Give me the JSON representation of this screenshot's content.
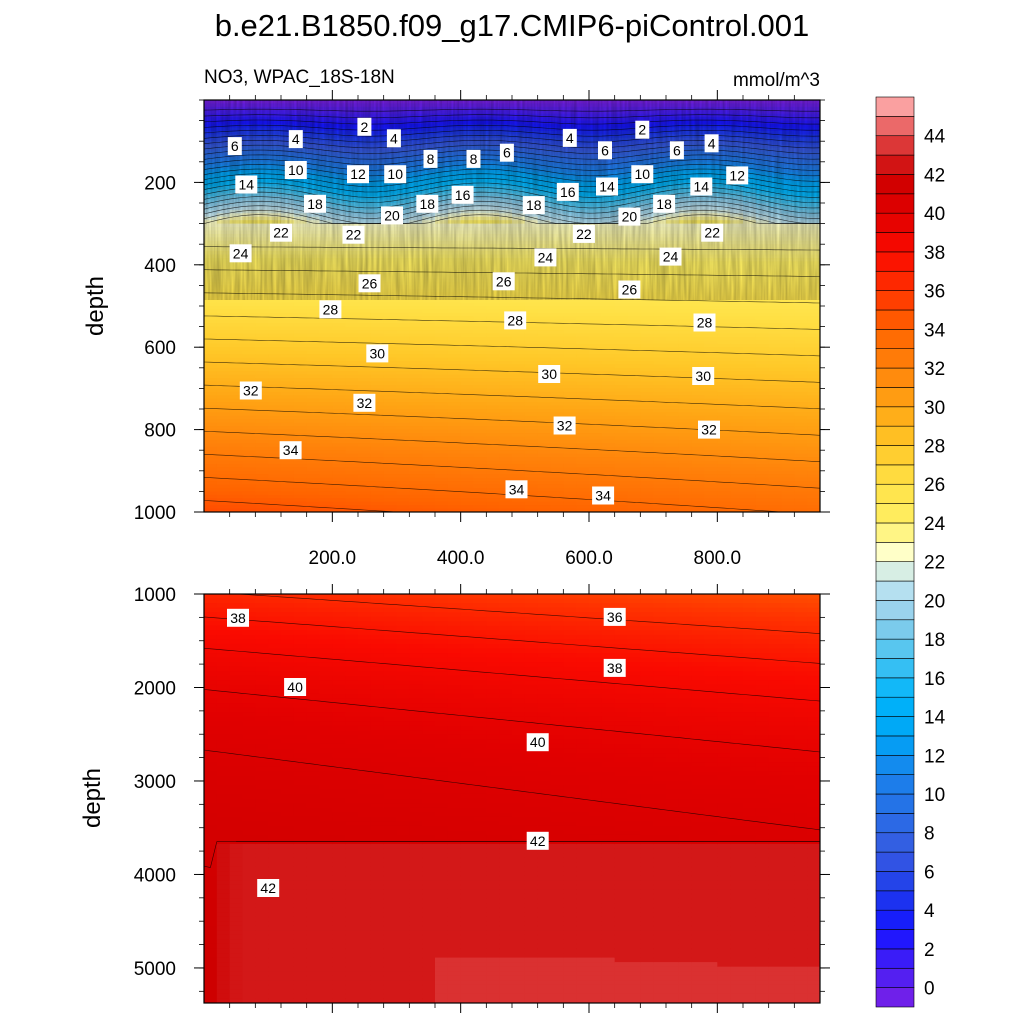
{
  "chart_data": {
    "type": "contour",
    "title": "b.e21.B1850.f09_g17.CMIP6-piControl.001",
    "subtitle_left": "NO3, WPAC_18S-18N",
    "subtitle_right": "mmol/m^3",
    "colorbar": {
      "min": -1,
      "max": 46,
      "step": 1,
      "labels": [
        "0",
        "2",
        "4",
        "6",
        "8",
        "10",
        "12",
        "14",
        "16",
        "18",
        "20",
        "22",
        "24",
        "26",
        "28",
        "30",
        "32",
        "34",
        "36",
        "38",
        "40",
        "42",
        "44"
      ],
      "label_values": [
        0,
        2,
        4,
        6,
        8,
        10,
        12,
        14,
        16,
        18,
        20,
        22,
        24,
        26,
        28,
        30,
        32,
        34,
        36,
        38,
        40,
        42,
        44
      ]
    },
    "panels": [
      {
        "name": "upper",
        "ylabel": "depth",
        "xlabel": "",
        "xrange": [
          0,
          960
        ],
        "yrange": [
          1000,
          0
        ],
        "yticks": [
          200,
          400,
          600,
          800,
          1000
        ],
        "ytick_labels": [
          "200",
          "400",
          "600",
          "800",
          "1000"
        ],
        "xticks": [
          200,
          400,
          600,
          800
        ],
        "xtick_labels": [
          "200.0",
          "400.0",
          "600.0",
          "800.0"
        ],
        "contour_labels": [
          {
            "text": "6",
            "x": 48,
            "y": 112
          },
          {
            "text": "4",
            "x": 143,
            "y": 95
          },
          {
            "text": "2",
            "x": 250,
            "y": 65
          },
          {
            "text": "4",
            "x": 296,
            "y": 93
          },
          {
            "text": "4",
            "x": 570,
            "y": 92
          },
          {
            "text": "6",
            "x": 625,
            "y": 122
          },
          {
            "text": "2",
            "x": 683,
            "y": 72
          },
          {
            "text": "6",
            "x": 737,
            "y": 122
          },
          {
            "text": "4",
            "x": 791,
            "y": 105
          },
          {
            "text": "6",
            "x": 472,
            "y": 128
          },
          {
            "text": "8",
            "x": 353,
            "y": 143
          },
          {
            "text": "8",
            "x": 420,
            "y": 143
          },
          {
            "text": "10",
            "x": 143,
            "y": 170
          },
          {
            "text": "12",
            "x": 240,
            "y": 180
          },
          {
            "text": "10",
            "x": 298,
            "y": 180
          },
          {
            "text": "10",
            "x": 683,
            "y": 180
          },
          {
            "text": "12",
            "x": 831,
            "y": 183
          },
          {
            "text": "14",
            "x": 66,
            "y": 205
          },
          {
            "text": "16",
            "x": 403,
            "y": 230
          },
          {
            "text": "16",
            "x": 567,
            "y": 223
          },
          {
            "text": "14",
            "x": 628,
            "y": 210
          },
          {
            "text": "14",
            "x": 775,
            "y": 210
          },
          {
            "text": "18",
            "x": 173,
            "y": 252
          },
          {
            "text": "18",
            "x": 348,
            "y": 252
          },
          {
            "text": "18",
            "x": 514,
            "y": 255
          },
          {
            "text": "18",
            "x": 717,
            "y": 252
          },
          {
            "text": "20",
            "x": 293,
            "y": 280
          },
          {
            "text": "20",
            "x": 663,
            "y": 283
          },
          {
            "text": "22",
            "x": 120,
            "y": 322
          },
          {
            "text": "22",
            "x": 233,
            "y": 327
          },
          {
            "text": "22",
            "x": 592,
            "y": 325
          },
          {
            "text": "22",
            "x": 792,
            "y": 322
          },
          {
            "text": "24",
            "x": 57,
            "y": 372
          },
          {
            "text": "24",
            "x": 532,
            "y": 382
          },
          {
            "text": "24",
            "x": 727,
            "y": 380
          },
          {
            "text": "26",
            "x": 258,
            "y": 445
          },
          {
            "text": "26",
            "x": 467,
            "y": 440
          },
          {
            "text": "26",
            "x": 663,
            "y": 460
          },
          {
            "text": "28",
            "x": 197,
            "y": 508
          },
          {
            "text": "28",
            "x": 485,
            "y": 535
          },
          {
            "text": "28",
            "x": 780,
            "y": 540
          },
          {
            "text": "30",
            "x": 270,
            "y": 615
          },
          {
            "text": "30",
            "x": 538,
            "y": 665
          },
          {
            "text": "30",
            "x": 778,
            "y": 670
          },
          {
            "text": "32",
            "x": 73,
            "y": 705
          },
          {
            "text": "32",
            "x": 250,
            "y": 735
          },
          {
            "text": "32",
            "x": 562,
            "y": 790
          },
          {
            "text": "32",
            "x": 787,
            "y": 800
          },
          {
            "text": "34",
            "x": 135,
            "y": 850
          },
          {
            "text": "34",
            "x": 487,
            "y": 945
          },
          {
            "text": "34",
            "x": 622,
            "y": 960
          }
        ]
      },
      {
        "name": "lower",
        "ylabel": "depth",
        "xlabel": "",
        "xrange": [
          0,
          960
        ],
        "yrange": [
          5375,
          1000
        ],
        "yticks": [
          1000,
          2000,
          3000,
          4000,
          5000
        ],
        "ytick_labels": [
          "1000",
          "2000",
          "3000",
          "4000",
          "5000"
        ],
        "xticks": [
          200,
          400,
          600,
          800
        ],
        "xtick_labels": [
          "",
          "",
          "",
          ""
        ],
        "contour_labels": [
          {
            "text": "38",
            "x": 53,
            "y": 1255
          },
          {
            "text": "36",
            "x": 640,
            "y": 1245
          },
          {
            "text": "38",
            "x": 640,
            "y": 1790
          },
          {
            "text": "40",
            "x": 142,
            "y": 1995
          },
          {
            "text": "40",
            "x": 520,
            "y": 2585
          },
          {
            "text": "42",
            "x": 520,
            "y": 3640
          },
          {
            "text": "42",
            "x": 100,
            "y": 4145
          }
        ]
      }
    ]
  }
}
